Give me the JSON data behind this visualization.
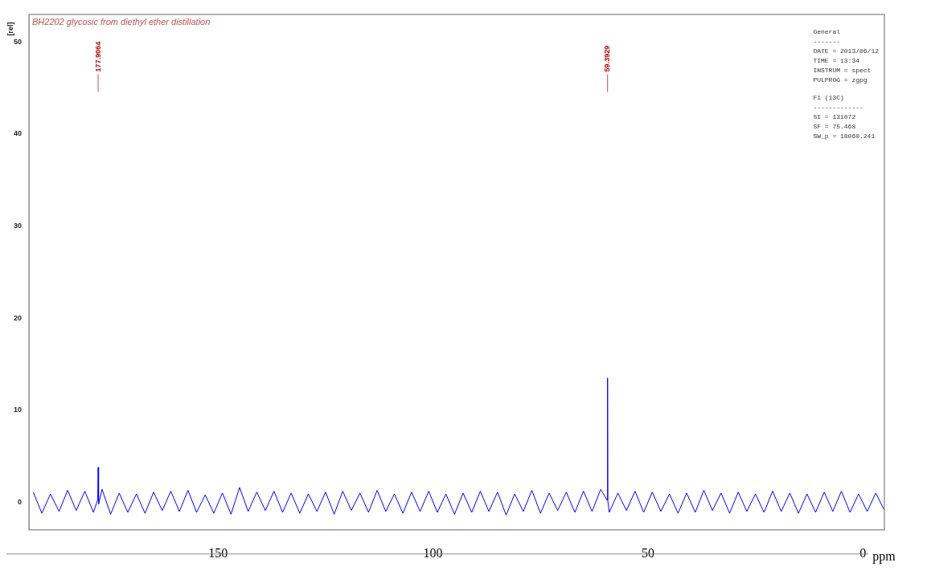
{
  "chart_data": {
    "type": "line",
    "title": "BH2202 glycosic from diethyl ether distillation",
    "xlabel": "ppm",
    "ylabel": "[rel]",
    "x": [
      193,
      191,
      189,
      187,
      185,
      183,
      181,
      179,
      178.0,
      177.9064,
      177.8,
      177,
      175,
      173,
      171,
      169,
      167,
      165,
      163,
      161,
      159,
      157,
      155,
      153,
      151,
      149,
      147,
      145,
      143,
      141,
      139,
      137,
      135,
      133,
      131,
      129,
      127,
      125,
      123,
      121,
      119,
      117,
      115,
      113,
      111,
      109,
      107,
      105,
      103,
      101,
      99,
      97,
      95,
      93,
      91,
      89,
      87,
      85,
      83,
      81,
      79,
      77,
      75,
      73,
      71,
      69,
      67,
      65,
      63,
      61,
      59.45,
      59.3929,
      59.33,
      59,
      57,
      55,
      53,
      51,
      49,
      47,
      45,
      43,
      41,
      39,
      37,
      35,
      33,
      31,
      29,
      27,
      25,
      23,
      21,
      19,
      17,
      15,
      13,
      11,
      9,
      7,
      5,
      3,
      1,
      -1,
      -3,
      -5
    ],
    "series": [
      {
        "color": "#0000ff",
        "values": [
          1.1,
          -1.2,
          0.9,
          -1.0,
          1.3,
          -0.9,
          1.2,
          -1.1,
          0.3,
          3.8,
          -0.2,
          1.4,
          -1.3,
          1.0,
          -1.1,
          0.9,
          -1.2,
          1.1,
          -0.9,
          1.2,
          -1.0,
          1.3,
          -1.1,
          0.8,
          -1.2,
          1.0,
          -1.3,
          1.6,
          -1.0,
          1.1,
          -0.9,
          1.2,
          -1.1,
          1.0,
          -1.2,
          0.9,
          -1.0,
          1.1,
          -1.3,
          1.2,
          -0.9,
          1.0,
          -1.1,
          1.3,
          -1.0,
          0.9,
          -1.2,
          1.1,
          -1.0,
          1.2,
          -1.1,
          0.9,
          -1.3,
          1.0,
          -1.1,
          1.2,
          -1.0,
          1.1,
          -1.4,
          0.9,
          -1.0,
          1.3,
          -1.2,
          1.0,
          -0.9,
          1.1,
          -1.1,
          1.2,
          -1.0,
          1.4,
          0.2,
          13.5,
          0.1,
          -1.1,
          1.0,
          -0.9,
          1.2,
          -1.1,
          1.1,
          -1.0,
          0.9,
          -1.2,
          1.0,
          -1.1,
          1.3,
          -0.9,
          1.0,
          -1.2,
          1.1,
          -1.0,
          0.9,
          -1.1,
          1.2,
          -1.0,
          1.0,
          -1.2,
          0.9,
          -1.1,
          1.1,
          -1.0,
          1.2,
          -1.1,
          0.9,
          -1.0,
          1.0,
          -0.9
        ]
      }
    ],
    "xlim": [
      194,
      -5
    ],
    "xticks": [
      150,
      100,
      50,
      0
    ],
    "ylim": [
      -3,
      53
    ],
    "yticks": [
      0,
      10,
      20,
      30,
      40,
      50
    ],
    "grid": false,
    "legend": false,
    "marker": "none",
    "annotations": [
      {
        "text": "177.9064",
        "x": 177.9064
      },
      {
        "text": "59.3929",
        "x": 59.3929
      },
      "General",
      "-------",
      "DATE = 2013/06/12",
      "TIME = 13:34",
      "INSTRUM = spect",
      "PULPROG = zgpg",
      "F1 (13C)",
      "-------------",
      "SI = 131072",
      "SF = 75.468",
      "SW_p = 18060.241"
    ]
  }
}
